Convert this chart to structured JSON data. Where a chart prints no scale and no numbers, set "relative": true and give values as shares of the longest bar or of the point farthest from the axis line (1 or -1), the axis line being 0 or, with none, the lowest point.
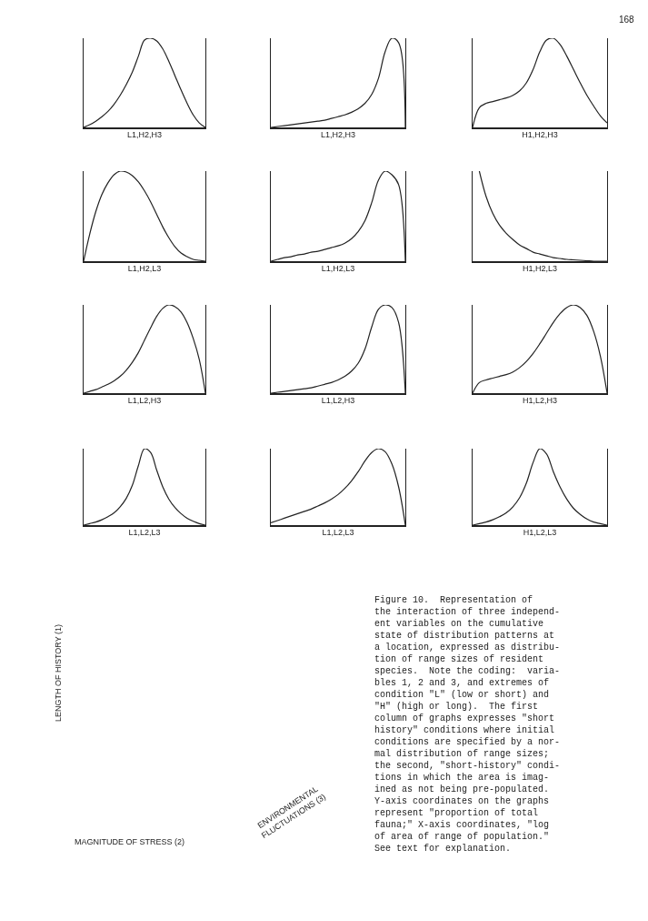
{
  "chart_data": [
    {
      "type": "line",
      "relative": true,
      "xlabel": "L1,H2,H3",
      "categories": [
        null,
        null,
        null,
        null,
        null,
        null,
        null,
        null,
        null,
        null,
        null,
        null,
        null,
        null,
        null,
        null,
        null,
        null,
        null,
        null,
        null
      ],
      "series": [
        {
          "color": "#222222",
          "values": [
            0,
            0.03,
            0.07,
            0.12,
            0.18,
            0.26,
            0.36,
            0.48,
            0.62,
            0.8,
            0.98,
            1,
            0.97,
            0.88,
            0.74,
            0.58,
            0.42,
            0.27,
            0.14,
            0.05,
            0
          ]
        }
      ]
    },
    {
      "type": "line",
      "relative": true,
      "xlabel": "L1,H2,H3",
      "categories": [
        null,
        null,
        null,
        null,
        null,
        null,
        null,
        null,
        null,
        null,
        null,
        null,
        null,
        null,
        null,
        null,
        null,
        null,
        null,
        null,
        null
      ],
      "series": [
        {
          "color": "#222222",
          "values": [
            0,
            0.01,
            0.02,
            0.03,
            0.04,
            0.05,
            0.06,
            0.07,
            0.08,
            0.1,
            0.12,
            0.14,
            0.17,
            0.21,
            0.27,
            0.37,
            0.55,
            0.85,
            1,
            0.95,
            0
          ]
        }
      ]
    },
    {
      "type": "line",
      "relative": true,
      "xlabel": "H1,H2,H3",
      "categories": [
        null,
        null,
        null,
        null,
        null,
        null,
        null,
        null,
        null,
        null,
        null,
        null,
        null,
        null,
        null,
        null,
        null,
        null,
        null,
        null,
        null
      ],
      "series": [
        {
          "color": "#222222",
          "values": [
            0,
            0.22,
            0.27,
            0.29,
            0.31,
            0.33,
            0.36,
            0.41,
            0.5,
            0.65,
            0.85,
            0.98,
            1,
            0.93,
            0.8,
            0.65,
            0.5,
            0.36,
            0.24,
            0.13,
            0.05
          ]
        }
      ]
    },
    {
      "type": "line",
      "relative": true,
      "xlabel": "L1,H2,L3",
      "categories": [
        null,
        null,
        null,
        null,
        null,
        null,
        null,
        null,
        null,
        null,
        null,
        null,
        null,
        null,
        null,
        null,
        null,
        null,
        null,
        null,
        null
      ],
      "series": [
        {
          "color": "#222222",
          "values": [
            0,
            0.3,
            0.55,
            0.74,
            0.87,
            0.96,
            1,
            0.99,
            0.95,
            0.88,
            0.78,
            0.66,
            0.52,
            0.38,
            0.26,
            0.16,
            0.09,
            0.05,
            0.02,
            0.01,
            0
          ]
        }
      ]
    },
    {
      "type": "line",
      "relative": true,
      "xlabel": "L1,H2,L3",
      "categories": [
        null,
        null,
        null,
        null,
        null,
        null,
        null,
        null,
        null,
        null,
        null,
        null,
        null,
        null,
        null,
        null,
        null,
        null,
        null,
        null,
        null
      ],
      "series": [
        {
          "color": "#222222",
          "values": [
            0,
            0.02,
            0.04,
            0.05,
            0.07,
            0.08,
            0.1,
            0.11,
            0.13,
            0.15,
            0.17,
            0.2,
            0.25,
            0.33,
            0.45,
            0.65,
            0.9,
            1,
            0.96,
            0.85,
            0
          ]
        }
      ]
    },
    {
      "type": "line",
      "relative": true,
      "xlabel": "H1,H2,L3",
      "categories": [
        null,
        null,
        null,
        null,
        null,
        null,
        null,
        null,
        null,
        null,
        null,
        null,
        null,
        null,
        null,
        null,
        null,
        null,
        null,
        null,
        null
      ],
      "series": [
        {
          "color": "#222222",
          "values": [
            null,
            1,
            0.72,
            0.53,
            0.4,
            0.31,
            0.24,
            0.18,
            0.14,
            0.1,
            0.08,
            0.06,
            0.04,
            0.03,
            0.02,
            0.015,
            0.01,
            0.005,
            0,
            0,
            0
          ]
        }
      ]
    },
    {
      "type": "line",
      "relative": true,
      "xlabel": "L1,L2,H3",
      "categories": [
        null,
        null,
        null,
        null,
        null,
        null,
        null,
        null,
        null,
        null,
        null,
        null,
        null,
        null,
        null,
        null,
        null,
        null,
        null,
        null,
        null
      ],
      "series": [
        {
          "color": "#222222",
          "values": [
            0,
            0.02,
            0.04,
            0.07,
            0.1,
            0.14,
            0.19,
            0.26,
            0.35,
            0.46,
            0.6,
            0.74,
            0.87,
            0.96,
            1,
            0.98,
            0.92,
            0.8,
            0.62,
            0.38,
            0
          ]
        }
      ]
    },
    {
      "type": "line",
      "relative": true,
      "xlabel": "L1,L2,H3",
      "categories": [
        null,
        null,
        null,
        null,
        null,
        null,
        null,
        null,
        null,
        null,
        null,
        null,
        null,
        null,
        null,
        null,
        null,
        null,
        null,
        null,
        null
      ],
      "series": [
        {
          "color": "#222222",
          "values": [
            0,
            0.01,
            0.02,
            0.03,
            0.04,
            0.05,
            0.06,
            0.08,
            0.1,
            0.12,
            0.15,
            0.19,
            0.25,
            0.34,
            0.5,
            0.75,
            0.95,
            1,
            0.97,
            0.8,
            0
          ]
        }
      ]
    },
    {
      "type": "line",
      "relative": true,
      "xlabel": "H1,L2,H3",
      "categories": [
        null,
        null,
        null,
        null,
        null,
        null,
        null,
        null,
        null,
        null,
        null,
        null,
        null,
        null,
        null,
        null,
        null,
        null,
        null,
        null,
        null
      ],
      "series": [
        {
          "color": "#222222",
          "values": [
            0,
            0.12,
            0.15,
            0.17,
            0.19,
            0.21,
            0.24,
            0.29,
            0.36,
            0.45,
            0.56,
            0.68,
            0.8,
            0.9,
            0.97,
            1,
            0.97,
            0.88,
            0.7,
            0.42,
            0
          ]
        }
      ]
    },
    {
      "type": "line",
      "relative": true,
      "xlabel": "L1,L2,L3",
      "categories": [
        null,
        null,
        null,
        null,
        null,
        null,
        null,
        null,
        null,
        null,
        null,
        null,
        null,
        null,
        null,
        null,
        null,
        null,
        null,
        null,
        null
      ],
      "series": [
        {
          "color": "#222222",
          "values": [
            0,
            0.02,
            0.04,
            0.07,
            0.11,
            0.16,
            0.24,
            0.35,
            0.52,
            0.78,
            1,
            0.95,
            0.72,
            0.5,
            0.34,
            0.23,
            0.15,
            0.09,
            0.05,
            0.02,
            0
          ]
        }
      ]
    },
    {
      "type": "line",
      "relative": true,
      "xlabel": "L1,L2,L3",
      "categories": [
        null,
        null,
        null,
        null,
        null,
        null,
        null,
        null,
        null,
        null,
        null,
        null,
        null,
        null,
        null,
        null,
        null,
        null,
        null,
        null,
        null
      ],
      "series": [
        {
          "color": "#222222",
          "values": [
            0.03,
            0.06,
            0.09,
            0.12,
            0.15,
            0.18,
            0.21,
            0.25,
            0.29,
            0.34,
            0.4,
            0.48,
            0.58,
            0.7,
            0.84,
            0.95,
            1,
            0.96,
            0.8,
            0.5,
            0
          ]
        }
      ]
    },
    {
      "type": "line",
      "relative": true,
      "xlabel": "H1,L2,L3",
      "categories": [
        null,
        null,
        null,
        null,
        null,
        null,
        null,
        null,
        null,
        null,
        null,
        null,
        null,
        null,
        null,
        null,
        null,
        null,
        null,
        null,
        null
      ],
      "series": [
        {
          "color": "#222222",
          "values": [
            0,
            0.02,
            0.04,
            0.07,
            0.11,
            0.16,
            0.24,
            0.36,
            0.55,
            0.82,
            1,
            0.93,
            0.7,
            0.5,
            0.34,
            0.22,
            0.14,
            0.08,
            0.04,
            0.02,
            0
          ]
        }
      ]
    },
    {
      "type": "other",
      "annotations": [
        "168",
        "LENGTH OF HISTORY (1)",
        "MAGNITUDE OF STRESS (2)",
        "ENVIRONMENTAL\nFLUCTUATIONS (3)",
        "Figure 10.  Representation of\nthe interaction of three independ-\nent variables on the cumulative\nstate of distribution patterns at\na location, expressed as distribu-\ntion of range sizes of resident\nspecies.  Note the coding:  varia-\nbles 1, 2 and 3, and extremes of\ncondition \"L\" (low or short) and\n\"H\" (high or long).  The first\ncolumn of graphs expresses \"short\nhistory\" conditions where initial\nconditions are specified by a nor-\nmal distribution of range sizes;\nthe second, \"short-history\" condi-\ntions in which the area is imag-\nined as not being pre-populated.\nY-axis coordinates on the graphs\nrepresent \"proportion of total\nfauna;\" X-axis coordinates, \"log\nof area of range of population.\"\nSee text for explanation."
      ]
    }
  ]
}
